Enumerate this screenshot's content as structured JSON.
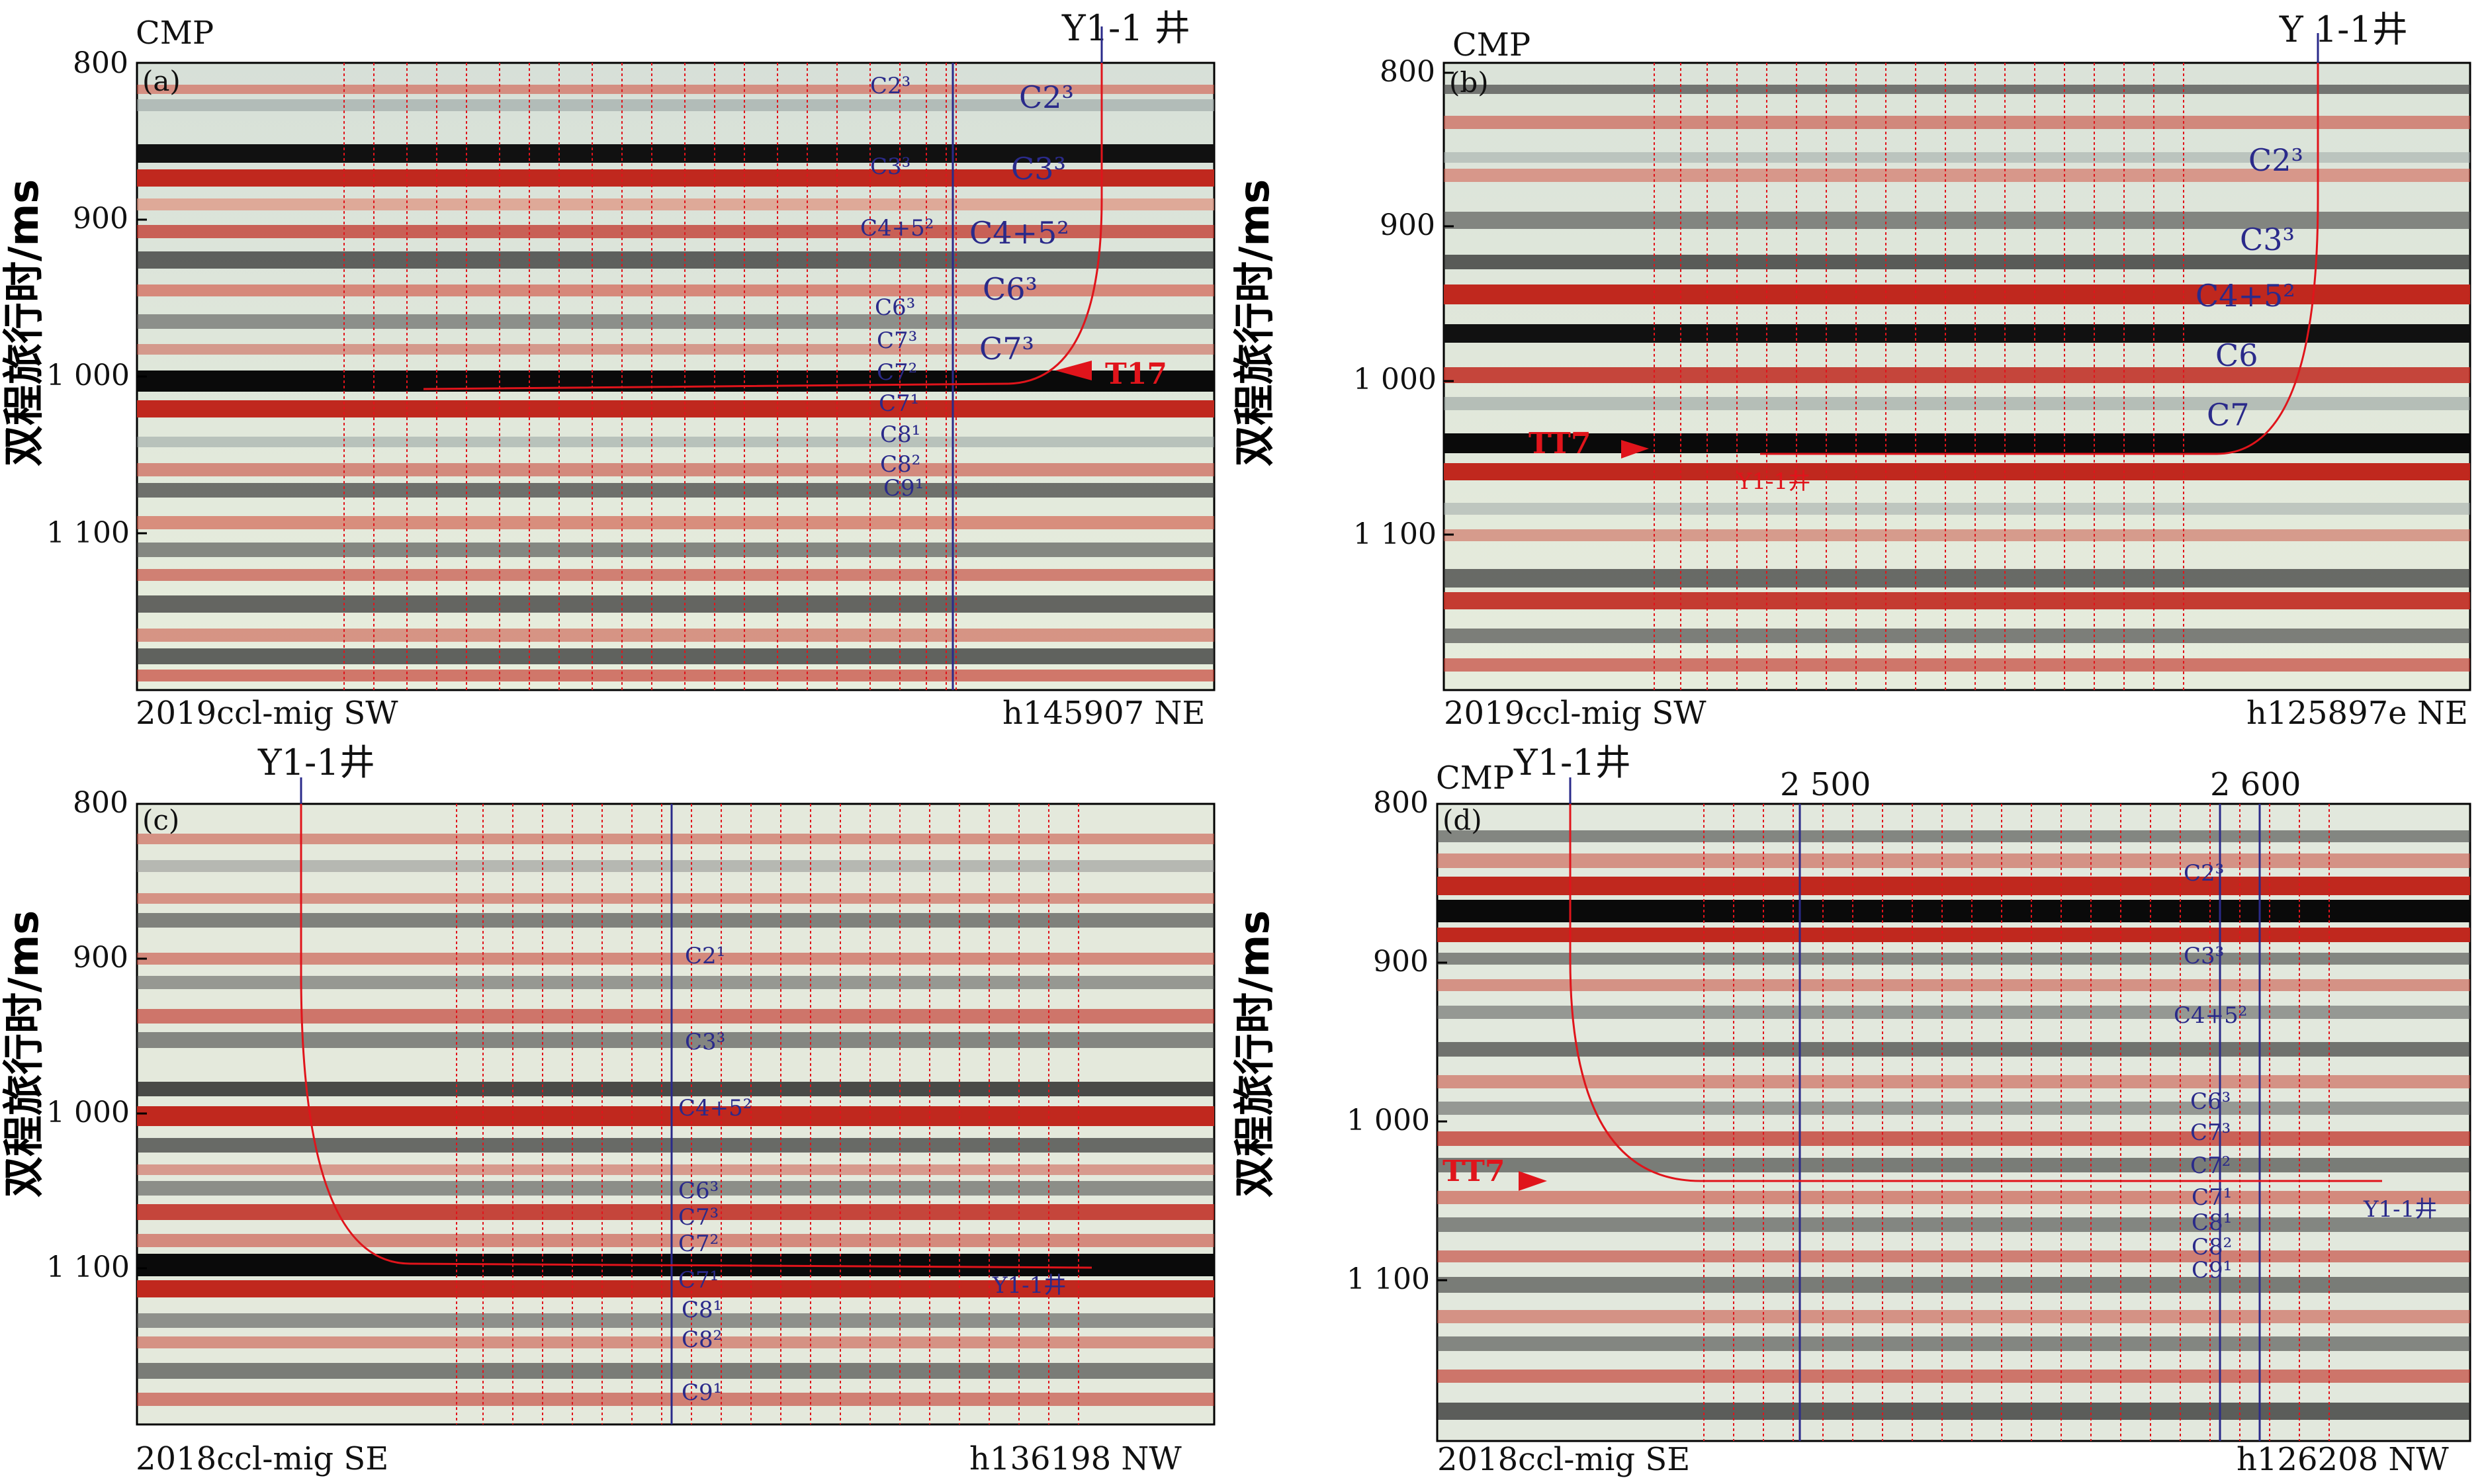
{
  "y_axis_label": "双程旅行时/ms",
  "panels": [
    {
      "id": "a",
      "panel_label": "(a)",
      "cmp": "CMP",
      "well": "Y1-1 井",
      "y_ticks": [
        "800",
        "900",
        "1 000",
        "1 100"
      ],
      "y_range": [
        800,
        1200
      ],
      "bottom_left": "2019ccl-mig SW",
      "bottom_right": "h145907 NE",
      "trajectory_horizons": [
        {
          "label": "C2³",
          "time": 825
        },
        {
          "label": "C3³",
          "time": 868
        },
        {
          "label": "C4+5²",
          "time": 910
        },
        {
          "label": "C6³",
          "time": 945
        },
        {
          "label": "C7³",
          "time": 980
        }
      ],
      "column_horizons": [
        {
          "label": "C2³",
          "time": 816
        },
        {
          "label": "C3³",
          "time": 866
        },
        {
          "label": "C4+5²",
          "time": 905
        },
        {
          "label": "C6³",
          "time": 956
        },
        {
          "label": "C7³",
          "time": 977
        },
        {
          "label": "C7²",
          "time": 997
        },
        {
          "label": "C7¹",
          "time": 1017
        },
        {
          "label": "C8¹",
          "time": 1037
        },
        {
          "label": "C8²",
          "time": 1056
        },
        {
          "label": "C9¹",
          "time": 1072
        }
      ],
      "marker": "T17",
      "marker_time": 998
    },
    {
      "id": "b",
      "panel_label": "(b)",
      "cmp": "CMP",
      "well": "Y 1-1井",
      "y_ticks": [
        "800",
        "900",
        "1 000",
        "1 100"
      ],
      "y_range": [
        800,
        1200
      ],
      "bottom_left": "2019ccl-mig SW",
      "bottom_right": "h125897e NE",
      "trajectory_horizons": [
        {
          "label": "C2³",
          "time": 860
        },
        {
          "label": "C3³",
          "time": 912
        },
        {
          "label": "C4+5²",
          "time": 948
        },
        {
          "label": "C6",
          "time": 986
        },
        {
          "label": "C7",
          "time": 1023
        }
      ],
      "marker": "TT7",
      "marker_time": 1047,
      "well_end_label": "Y1-1井"
    },
    {
      "id": "c",
      "panel_label": "(c)",
      "well": "Y1-1井",
      "y_ticks": [
        "800",
        "900",
        "1 000",
        "1 100"
      ],
      "y_range": [
        800,
        1200
      ],
      "bottom_left": "2018ccl-mig SE",
      "bottom_right": "h136198 NW",
      "column_horizons": [
        {
          "label": "C2¹",
          "time": 897
        },
        {
          "label": "C3³",
          "time": 953
        },
        {
          "label": "C4+5²",
          "time": 995
        },
        {
          "label": "C6³",
          "time": 1048
        },
        {
          "label": "C7³",
          "time": 1067
        },
        {
          "label": "C7²",
          "time": 1082
        },
        {
          "label": "C7¹",
          "time": 1107
        },
        {
          "label": "C8¹",
          "time": 1125
        },
        {
          "label": "C8²",
          "time": 1145
        },
        {
          "label": "C9¹",
          "time": 1180
        }
      ],
      "well_end_label": "Y1-1井",
      "well_end_time": 1093
    },
    {
      "id": "d",
      "panel_label": "(d)",
      "cmp": "CMP",
      "well": "Y1-1井",
      "cmp_ticks": [
        "2 500",
        "2 600"
      ],
      "y_ticks": [
        "800",
        "900",
        "1 000",
        "1 100"
      ],
      "y_range": [
        800,
        1200
      ],
      "bottom_left": "2018ccl-mig SE",
      "bottom_right": "h126208 NW",
      "column_horizons": [
        {
          "label": "C2³",
          "time": 848
        },
        {
          "label": "C3³",
          "time": 900
        },
        {
          "label": "C4+5²",
          "time": 940
        },
        {
          "label": "C6³",
          "time": 990
        },
        {
          "label": "C7³",
          "time": 1012
        },
        {
          "label": "C7²",
          "time": 1032
        },
        {
          "label": "C7¹",
          "time": 1055
        },
        {
          "label": "C8¹",
          "time": 1072
        },
        {
          "label": "C8²",
          "time": 1088
        },
        {
          "label": "C9¹",
          "time": 1105
        }
      ],
      "marker": "TT7",
      "marker_time": 1040,
      "well_end_label": "Y1-1井",
      "well_end_time": 1055
    }
  ]
}
